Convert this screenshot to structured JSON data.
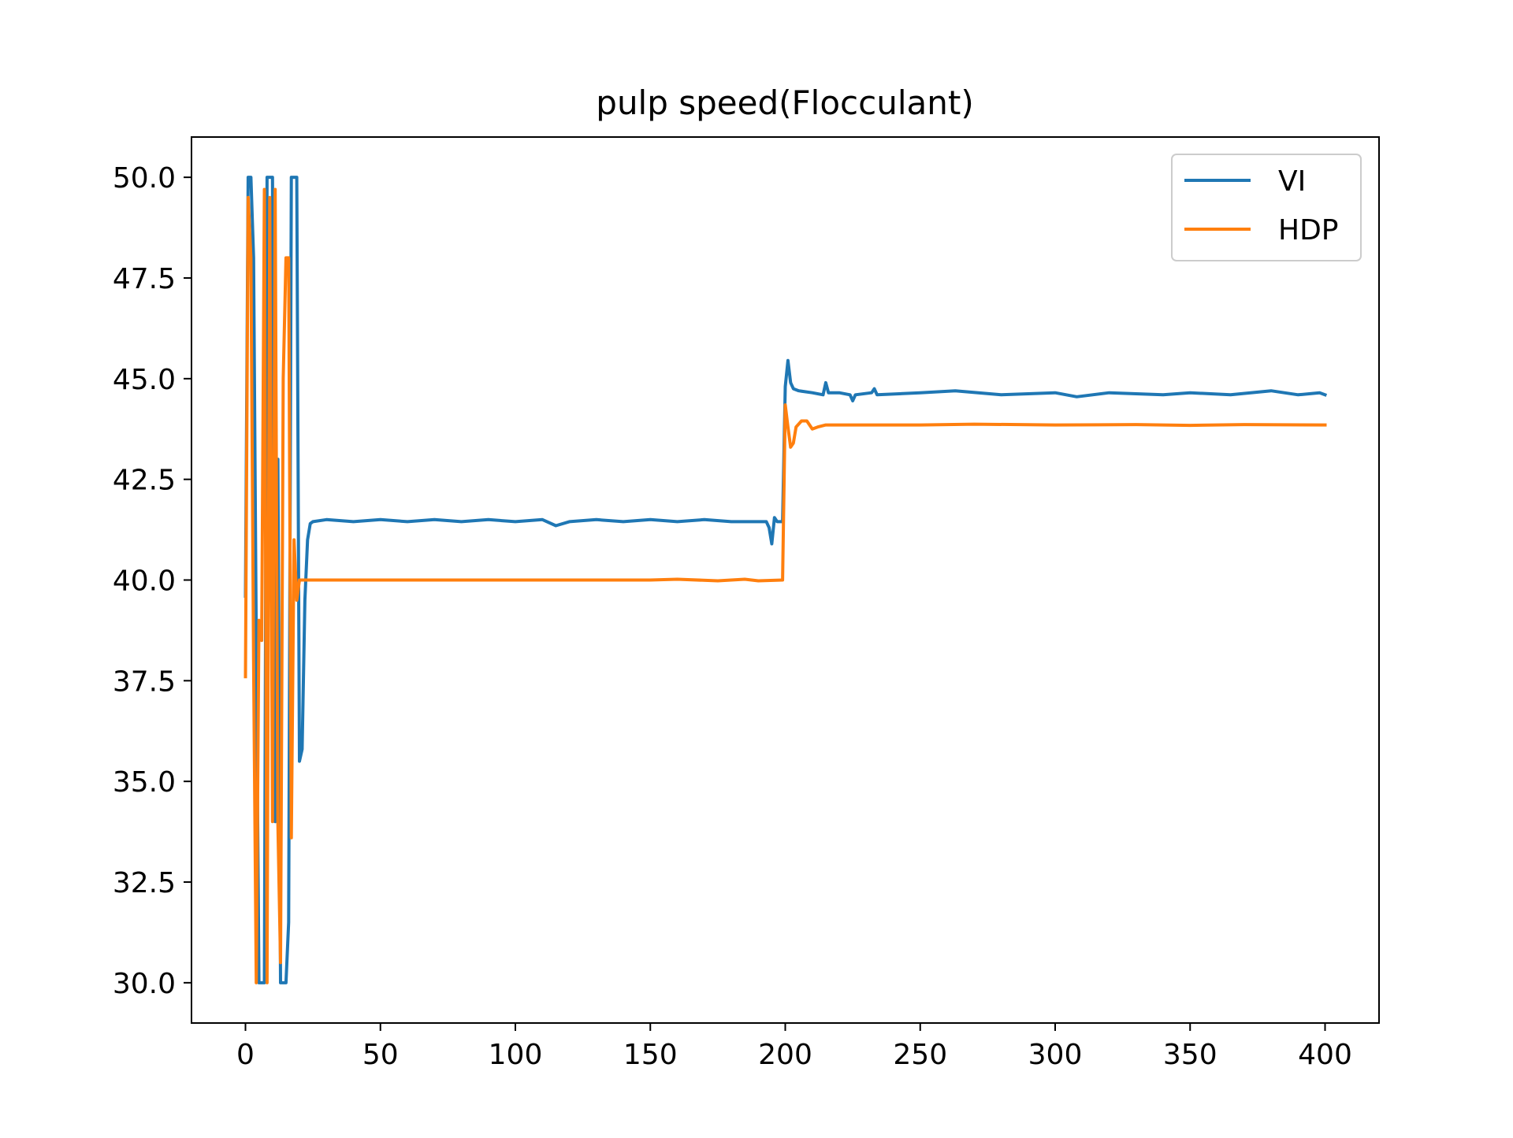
{
  "chart_data": {
    "type": "line",
    "title": "pulp speed(Flocculant)",
    "xlabel": "",
    "ylabel": "",
    "xlim": [
      -20,
      420
    ],
    "ylim": [
      29,
      51
    ],
    "x_ticks": [
      0,
      50,
      100,
      150,
      200,
      250,
      300,
      350,
      400
    ],
    "y_ticks": [
      30.0,
      32.5,
      35.0,
      37.5,
      40.0,
      42.5,
      45.0,
      47.5,
      50.0
    ],
    "grid": false,
    "legend_position": "top-right",
    "series": [
      {
        "name": "VI",
        "color": "#1f77b4",
        "points": [
          [
            0,
            39.6
          ],
          [
            1,
            50.0
          ],
          [
            2,
            50.0
          ],
          [
            3,
            48.0
          ],
          [
            4,
            38.5
          ],
          [
            5,
            30.0
          ],
          [
            6,
            30.0
          ],
          [
            7,
            30.0
          ],
          [
            8,
            50.0
          ],
          [
            9,
            50.0
          ],
          [
            10,
            50.0
          ],
          [
            11,
            34.0
          ],
          [
            12,
            43.0
          ],
          [
            13,
            30.0
          ],
          [
            14,
            30.0
          ],
          [
            15,
            30.0
          ],
          [
            16,
            31.5
          ],
          [
            17,
            50.0
          ],
          [
            18,
            50.0
          ],
          [
            19,
            50.0
          ],
          [
            20,
            35.5
          ],
          [
            21,
            35.8
          ],
          [
            22,
            39.5
          ],
          [
            23,
            41.0
          ],
          [
            24,
            41.4
          ],
          [
            25,
            41.45
          ],
          [
            30,
            41.5
          ],
          [
            40,
            41.45
          ],
          [
            50,
            41.5
          ],
          [
            60,
            41.45
          ],
          [
            70,
            41.5
          ],
          [
            80,
            41.45
          ],
          [
            90,
            41.5
          ],
          [
            100,
            41.45
          ],
          [
            110,
            41.5
          ],
          [
            115,
            41.35
          ],
          [
            120,
            41.45
          ],
          [
            130,
            41.5
          ],
          [
            140,
            41.45
          ],
          [
            150,
            41.5
          ],
          [
            160,
            41.45
          ],
          [
            170,
            41.5
          ],
          [
            180,
            41.45
          ],
          [
            190,
            41.45
          ],
          [
            193,
            41.45
          ],
          [
            194,
            41.3
          ],
          [
            195,
            40.9
          ],
          [
            196,
            41.55
          ],
          [
            197,
            41.45
          ],
          [
            199,
            41.45
          ],
          [
            200,
            44.8
          ],
          [
            201,
            45.45
          ],
          [
            202,
            44.9
          ],
          [
            203,
            44.75
          ],
          [
            205,
            44.7
          ],
          [
            210,
            44.65
          ],
          [
            214,
            44.6
          ],
          [
            215,
            44.9
          ],
          [
            216,
            44.65
          ],
          [
            220,
            44.65
          ],
          [
            224,
            44.6
          ],
          [
            225,
            44.45
          ],
          [
            226,
            44.6
          ],
          [
            232,
            44.65
          ],
          [
            233,
            44.75
          ],
          [
            234,
            44.6
          ],
          [
            250,
            44.65
          ],
          [
            263,
            44.7
          ],
          [
            280,
            44.6
          ],
          [
            300,
            44.65
          ],
          [
            308,
            44.55
          ],
          [
            320,
            44.65
          ],
          [
            340,
            44.6
          ],
          [
            350,
            44.65
          ],
          [
            365,
            44.6
          ],
          [
            380,
            44.7
          ],
          [
            390,
            44.6
          ],
          [
            398,
            44.65
          ],
          [
            400,
            44.6
          ]
        ]
      },
      {
        "name": "HDP",
        "color": "#ff7f0e",
        "points": [
          [
            0,
            37.6
          ],
          [
            1,
            49.5
          ],
          [
            2,
            48.0
          ],
          [
            3,
            38.0
          ],
          [
            4,
            30.0
          ],
          [
            5,
            39.0
          ],
          [
            6,
            38.5
          ],
          [
            7,
            49.7
          ],
          [
            8,
            30.0
          ],
          [
            9,
            49.5
          ],
          [
            10,
            34.0
          ],
          [
            11,
            49.7
          ],
          [
            12,
            34.0
          ],
          [
            13,
            30.5
          ],
          [
            14,
            45.0
          ],
          [
            15,
            48.0
          ],
          [
            16,
            48.0
          ],
          [
            17,
            33.6
          ],
          [
            18,
            41.0
          ],
          [
            19,
            39.5
          ],
          [
            20,
            40.0
          ],
          [
            21,
            40.0
          ],
          [
            30,
            40.0
          ],
          [
            60,
            40.0
          ],
          [
            100,
            40.0
          ],
          [
            150,
            40.0
          ],
          [
            160,
            40.02
          ],
          [
            175,
            39.98
          ],
          [
            185,
            40.02
          ],
          [
            190,
            39.98
          ],
          [
            199,
            40.0
          ],
          [
            200,
            44.35
          ],
          [
            201,
            43.8
          ],
          [
            202,
            43.3
          ],
          [
            203,
            43.4
          ],
          [
            204,
            43.8
          ],
          [
            206,
            43.95
          ],
          [
            208,
            43.95
          ],
          [
            210,
            43.75
          ],
          [
            212,
            43.8
          ],
          [
            215,
            43.85
          ],
          [
            230,
            43.85
          ],
          [
            250,
            43.85
          ],
          [
            270,
            43.87
          ],
          [
            300,
            43.85
          ],
          [
            330,
            43.86
          ],
          [
            350,
            43.84
          ],
          [
            370,
            43.86
          ],
          [
            400,
            43.85
          ]
        ]
      }
    ]
  }
}
